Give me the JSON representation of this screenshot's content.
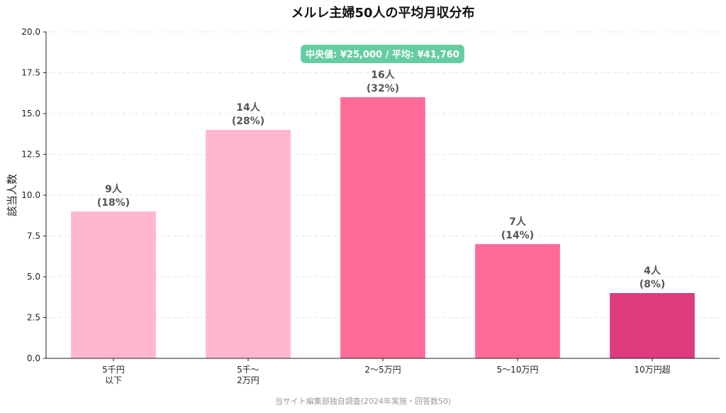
{
  "chart_data": {
    "type": "bar",
    "title": "メルレ主婦50人の平均月収分布",
    "xlabel": "",
    "ylabel": "該当人数",
    "ylim": [
      0,
      20
    ],
    "yticks": [
      "0.0",
      "2.5",
      "5.0",
      "7.5",
      "10.0",
      "12.5",
      "15.0",
      "17.5",
      "20.0"
    ],
    "categories": [
      [
        "5千円",
        "以下"
      ],
      [
        "5千〜",
        "2万円"
      ],
      [
        "2〜5万円"
      ],
      [
        "5〜10万円"
      ],
      [
        "10万円超"
      ]
    ],
    "values": [
      9,
      14,
      16,
      7,
      4
    ],
    "value_labels": [
      "9人",
      "14人",
      "16人",
      "7人",
      "4人"
    ],
    "percent_labels": [
      "(18%)",
      "(28%)",
      "(32%)",
      "(14%)",
      "(8%)"
    ],
    "bar_colors": [
      "#FFB6CF",
      "#FFB6CF",
      "#FF6B98",
      "#FF6B98",
      "#DE3A7E"
    ],
    "grid": true,
    "grid_axis": "y",
    "annotation": "中央値: ¥25,000 / 平均: ¥41,760",
    "annotation_color": "#66CDA3",
    "source": "当サイト編集部独自調査(2024年実施・回答数50)"
  }
}
